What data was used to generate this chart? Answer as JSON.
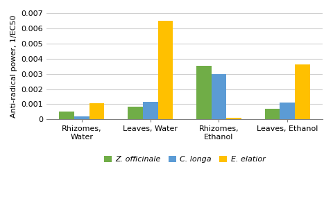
{
  "categories": [
    "Rhizomes,\nWater",
    "Leaves, Water",
    "Rhizomes,\nEthanol",
    "Leaves, Ethanol"
  ],
  "series": [
    {
      "label": "Z. officinale",
      "color": "#70ad47",
      "values": [
        0.0005,
        0.00085,
        0.00355,
        0.00068
      ]
    },
    {
      "label": "C. longa",
      "color": "#5b9bd5",
      "values": [
        0.00018,
        0.00115,
        0.003,
        0.00112
      ]
    },
    {
      "label": "E. elatior",
      "color": "#ffc000",
      "values": [
        0.00108,
        0.00652,
        0.00012,
        0.00363
      ]
    }
  ],
  "ylabel": "Anti-radical power, 1/EC50",
  "ylim": [
    0,
    0.007
  ],
  "yticks": [
    0,
    0.001,
    0.002,
    0.003,
    0.004,
    0.005,
    0.006,
    0.007
  ],
  "ytick_labels": [
    "0",
    "0.001",
    "0.002",
    "0.003",
    "0.004",
    "0.005",
    "0.006",
    "0.007"
  ],
  "bar_width": 0.22,
  "legend_fontsize": 8,
  "tick_fontsize": 8,
  "ylabel_fontsize": 8,
  "background_color": "#ffffff",
  "grid_color": "#d0d0d0"
}
